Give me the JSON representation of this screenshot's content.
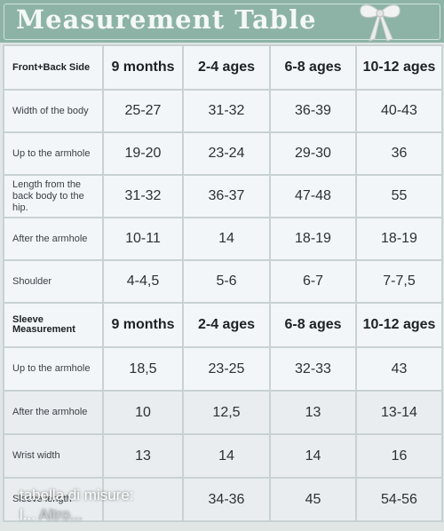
{
  "header": {
    "title": "Measurement Table"
  },
  "sections": [
    {
      "columns": [
        "Front+Back Side",
        "9 months",
        "2-4 ages",
        "6-8 ages",
        "10-12 ages"
      ],
      "rows": [
        {
          "label": "Width of the body",
          "values": [
            "25-27",
            "31-32",
            "36-39",
            "40-43"
          ]
        },
        {
          "label": "Up to the armhole",
          "values": [
            "19-20",
            "23-24",
            "29-30",
            "36"
          ]
        },
        {
          "label": "Length from the back body to the hip.",
          "values": [
            "31-32",
            "36-37",
            "47-48",
            "55"
          ]
        },
        {
          "label": "After the armhole",
          "values": [
            "10-11",
            "14",
            "18-19",
            "18-19"
          ]
        },
        {
          "label": "Shoulder",
          "values": [
            "4-4,5",
            "5-6",
            "6-7",
            "7-7,5"
          ]
        }
      ]
    },
    {
      "columns": [
        "Sleeve Measurement",
        "9 months",
        "2-4 ages",
        "6-8 ages",
        "10-12 ages"
      ],
      "rows": [
        {
          "label": "Up to the armhole",
          "values": [
            "18,5",
            "23-25",
            "32-33",
            "43"
          ]
        },
        {
          "label": "After the armhole",
          "values": [
            "10",
            "12,5",
            "13",
            "13-14"
          ]
        },
        {
          "label": "Wrist width",
          "values": [
            "13",
            "14",
            "14",
            "16"
          ]
        },
        {
          "label": "Sleeve length",
          "values": [
            null,
            "34-36",
            "45",
            "54-56"
          ]
        }
      ]
    }
  ],
  "caption": {
    "line1": "tabella di misure:",
    "line2": "l...",
    "more": "Altro..."
  }
}
